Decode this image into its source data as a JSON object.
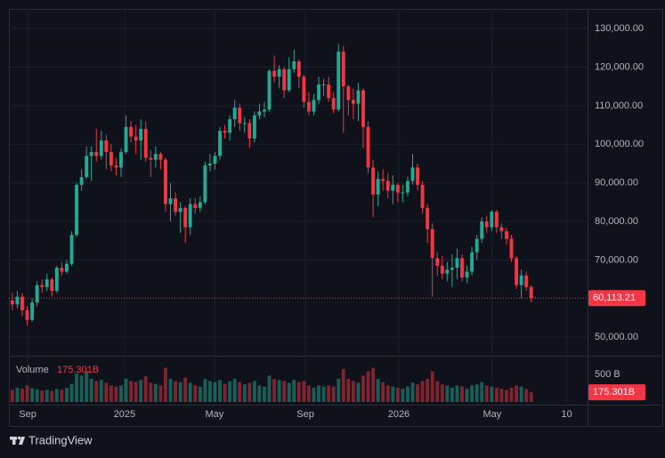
{
  "chart_data": {
    "type": "candlestick",
    "up_color": "#22ab94",
    "down_color": "#f23645",
    "open": [
      59500,
      58500,
      60500,
      57000,
      54500,
      59000,
      63500,
      63000,
      65000,
      62000,
      68000,
      67000,
      69000,
      76500,
      89500,
      91500,
      97000,
      98000,
      97000,
      101000,
      98000,
      94500,
      94000,
      98000,
      104500,
      102000,
      101000,
      104000,
      96500,
      96000,
      97500,
      96000,
      84500,
      86000,
      82500,
      83500,
      78500,
      84500,
      83500,
      85000,
      94500,
      95000,
      97000,
      103500,
      103000,
      106500,
      109500,
      105500,
      105500,
      101500,
      107500,
      108500,
      109000,
      119000,
      117500,
      119500,
      114000,
      119500,
      121500,
      117500,
      111000,
      108500,
      111500,
      115500,
      115500,
      112000,
      109000,
      124000,
      115000,
      111500,
      110500,
      114000,
      104500,
      94000,
      87000,
      91000,
      90500,
      88000,
      89500,
      87500,
      87500,
      90500,
      94000,
      89500,
      83500,
      78000,
      70500,
      68500,
      66500,
      67500,
      68000,
      70500,
      65500,
      67000,
      72000,
      75500,
      80000,
      78500,
      82500,
      78500,
      77500,
      75500,
      70500,
      63500,
      66000,
      63000
    ],
    "high": [
      61500,
      62000,
      61500,
      58000,
      60000,
      64500,
      65000,
      66500,
      65500,
      68500,
      69500,
      70000,
      77500,
      90000,
      93500,
      99500,
      99500,
      104000,
      103500,
      102500,
      100000,
      96500,
      99000,
      107500,
      106000,
      105000,
      106500,
      106000,
      98500,
      99500,
      98000,
      96500,
      90000,
      87500,
      85000,
      84000,
      86000,
      86000,
      86500,
      95500,
      97500,
      98000,
      104500,
      105000,
      107500,
      111500,
      110500,
      107000,
      106500,
      108500,
      110500,
      111000,
      119500,
      123000,
      120500,
      120000,
      122500,
      124500,
      122000,
      118000,
      113500,
      113000,
      117500,
      117000,
      117500,
      113500,
      126000,
      125500,
      115500,
      114500,
      116000,
      114500,
      106000,
      96000,
      93000,
      93500,
      92500,
      92000,
      90000,
      89500,
      91500,
      97500,
      95000,
      90500,
      84500,
      79500,
      72000,
      71000,
      69500,
      71500,
      73000,
      71500,
      68500,
      73500,
      76500,
      81000,
      81500,
      83000,
      83000,
      79500,
      78500,
      76500,
      71000,
      67500,
      67000,
      63500
    ],
    "low": [
      57000,
      57500,
      55500,
      53000,
      54000,
      58000,
      61500,
      62000,
      60500,
      61500,
      66000,
      66500,
      68500,
      76000,
      88000,
      91000,
      90500,
      95500,
      96000,
      93500,
      93000,
      92000,
      91500,
      97500,
      100500,
      97500,
      96000,
      95500,
      91500,
      94000,
      93500,
      82500,
      80000,
      81500,
      77000,
      74500,
      76500,
      82000,
      82500,
      84500,
      93000,
      93500,
      96000,
      101500,
      101000,
      104500,
      103500,
      103000,
      99000,
      100500,
      106500,
      107000,
      108500,
      116000,
      114500,
      112000,
      113500,
      118500,
      114500,
      109500,
      107500,
      107500,
      110500,
      112500,
      111000,
      108000,
      108500,
      103000,
      107500,
      106500,
      106000,
      99000,
      92500,
      81000,
      84000,
      88000,
      86000,
      84500,
      85000,
      85000,
      86500,
      89500,
      88000,
      82000,
      74500,
      60500,
      66000,
      65000,
      64500,
      63000,
      65000,
      64500,
      64000,
      66000,
      70000,
      74500,
      77000,
      77500,
      77000,
      75500,
      74000,
      69500,
      62500,
      60000,
      62000,
      59000
    ],
    "close": [
      58500,
      60500,
      57000,
      54500,
      59000,
      63500,
      63000,
      65000,
      62000,
      68000,
      67000,
      69000,
      76500,
      89500,
      91500,
      97000,
      98000,
      97000,
      101000,
      98000,
      94500,
      94000,
      98000,
      104500,
      102000,
      101000,
      104000,
      96500,
      96000,
      97500,
      96000,
      84500,
      86000,
      82500,
      83500,
      78500,
      84500,
      83500,
      85000,
      94500,
      95000,
      97000,
      103500,
      103000,
      106500,
      109500,
      105500,
      105500,
      101500,
      107500,
      108500,
      109000,
      119000,
      117500,
      119500,
      114000,
      119500,
      121500,
      117500,
      111000,
      108500,
      111500,
      115500,
      115500,
      112000,
      109000,
      124000,
      115000,
      111500,
      110500,
      114000,
      104500,
      94000,
      87000,
      91000,
      90500,
      88000,
      89500,
      87500,
      87500,
      90500,
      94000,
      89500,
      83500,
      78000,
      70500,
      68500,
      66500,
      67500,
      68000,
      70500,
      65500,
      67000,
      72000,
      75500,
      80000,
      78500,
      82500,
      78500,
      77500,
      75500,
      70500,
      63500,
      66000,
      63000,
      60113.21
    ],
    "close_label": "60,113.21",
    "volume_title": "Volume",
    "volume": [
      220,
      260,
      240,
      300,
      250,
      230,
      210,
      220,
      200,
      240,
      220,
      260,
      330,
      520,
      480,
      560,
      420,
      380,
      400,
      350,
      300,
      280,
      300,
      420,
      380,
      360,
      400,
      470,
      350,
      330,
      300,
      620,
      420,
      380,
      360,
      440,
      350,
      300,
      280,
      420,
      380,
      360,
      400,
      330,
      380,
      420,
      360,
      320,
      350,
      380,
      300,
      280,
      480,
      420,
      400,
      380,
      350,
      400,
      360,
      380,
      300,
      260,
      300,
      280,
      300,
      280,
      420,
      600,
      420,
      380,
      350,
      480,
      560,
      620,
      420,
      360,
      300,
      280,
      260,
      240,
      280,
      350,
      320,
      380,
      420,
      560,
      380,
      320,
      300,
      260,
      300,
      280,
      240,
      300,
      320,
      360,
      300,
      280,
      260,
      240,
      220,
      260,
      300,
      280,
      240,
      175.301
    ],
    "volume_label": "175.301B",
    "xlim": [
      -0.7,
      116.4
    ],
    "xticks": [
      {
        "value": 3.1,
        "label": "Sep"
      },
      {
        "value": 22.7,
        "label": "2025"
      },
      {
        "value": 40.9,
        "label": "May"
      },
      {
        "value": 59.3,
        "label": "Sep"
      },
      {
        "value": 78.2,
        "label": "2026"
      },
      {
        "value": 97.1,
        "label": "May"
      },
      {
        "value": 112.2,
        "label": "10"
      }
    ],
    "ylim": [
      45200,
      135100
    ],
    "yticks": [
      {
        "value": 50000,
        "label": "50,000.00"
      },
      {
        "value": 70000,
        "label": "70,000.00"
      },
      {
        "value": 80000,
        "label": "80,000.00"
      },
      {
        "value": 90000,
        "label": "90,000.00"
      },
      {
        "value": 100000,
        "label": "100,000.00"
      },
      {
        "value": 110000,
        "label": "110,000.00"
      },
      {
        "value": 120000,
        "label": "120,000.00"
      },
      {
        "value": 130000,
        "label": "130,000.00"
      }
    ],
    "y2lim": [
      0,
      760
    ],
    "y2ticks": [
      {
        "value": 500,
        "label": "500 B"
      }
    ],
    "grid": true
  },
  "brand": "TradingView"
}
